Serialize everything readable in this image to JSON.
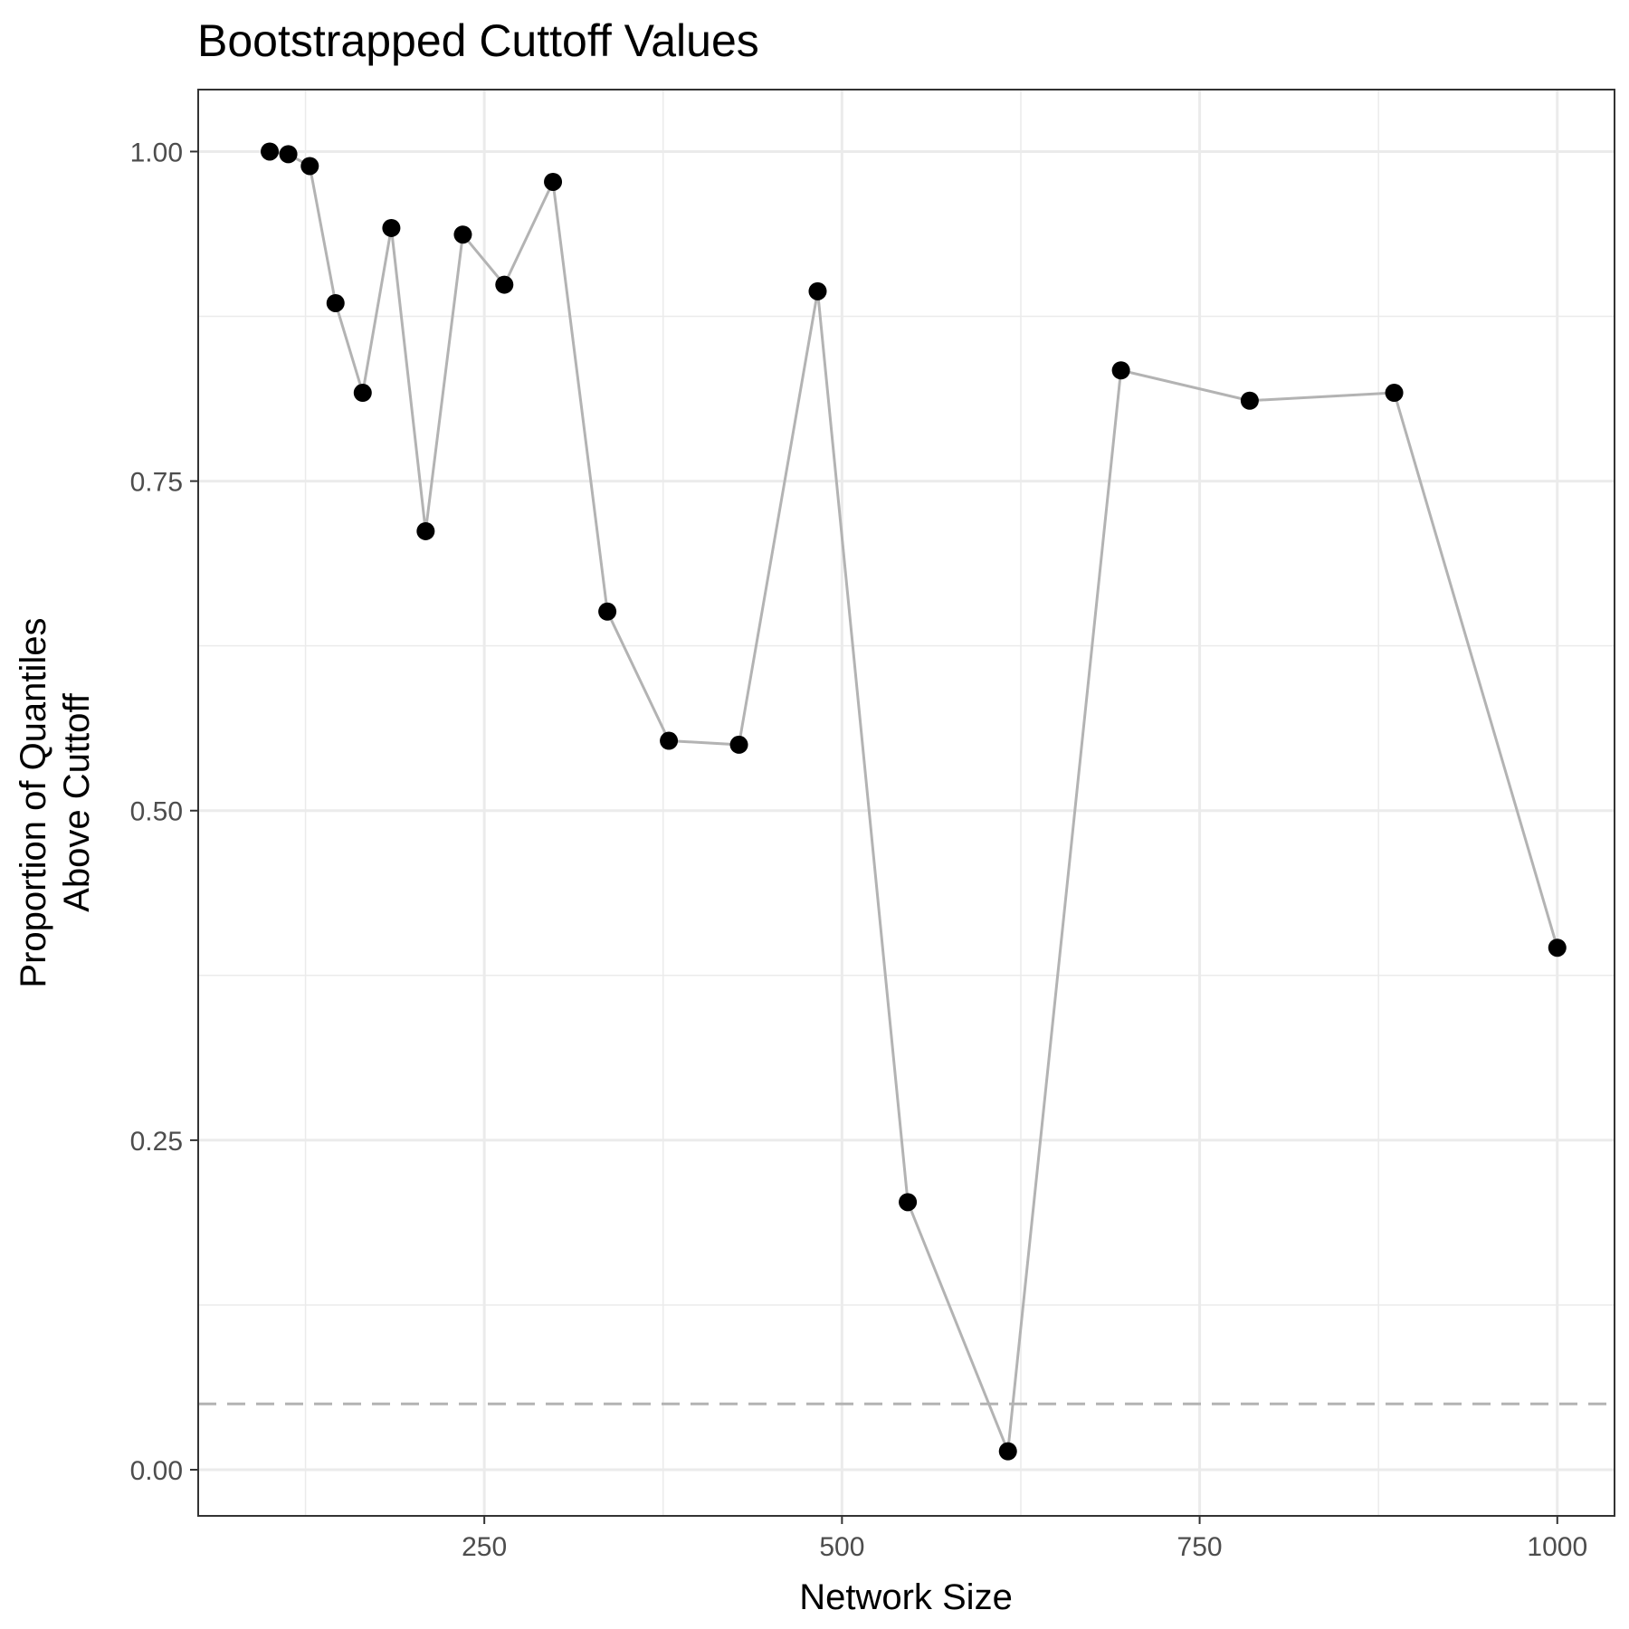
{
  "chart_data": {
    "type": "line",
    "title": "Bootstrapped Cuttoff Values",
    "xlabel": "Network Size",
    "ylabel": [
      "Proportion of Quantiles",
      "Above Cuttoff"
    ],
    "xlim": [
      50,
      1040
    ],
    "ylim": [
      -0.035,
      1.047
    ],
    "x_ticks": [
      250,
      500,
      750,
      1000
    ],
    "x_tick_labels": [
      "250",
      "500",
      "750",
      "1000"
    ],
    "y_ticks": [
      0,
      0.25,
      0.5,
      0.75,
      1
    ],
    "y_tick_labels": [
      "0.00",
      "0.25",
      "0.50",
      "0.75",
      "1.00"
    ],
    "grid": true,
    "reference_line": {
      "y": 0.05,
      "style": "dashed",
      "color": "#b3b3b3"
    },
    "series": [
      {
        "line_color": "#b3b3b3",
        "point_color": "#000000",
        "x": [
          100,
          113,
          128,
          146,
          165,
          185,
          209,
          235,
          264,
          298,
          336,
          379,
          428,
          483,
          546,
          616,
          695,
          785,
          886,
          1000
        ],
        "y": [
          1.0,
          0.998,
          0.989,
          0.885,
          0.817,
          0.942,
          0.712,
          0.937,
          0.899,
          0.977,
          0.651,
          0.553,
          0.55,
          0.894,
          0.203,
          0.014,
          0.834,
          0.811,
          0.817,
          0.396
        ]
      }
    ]
  }
}
